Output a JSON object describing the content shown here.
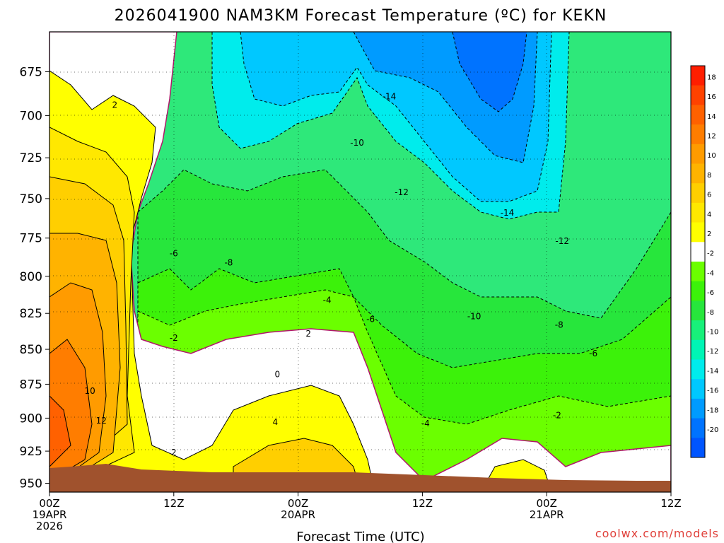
{
  "chart_data": {
    "type": "heatmap",
    "title": "2026041900 NAM3KM Forecast Temperature (ºC) for KEKN",
    "xlabel": "Forecast Time (UTC)",
    "ylabel": "",
    "x_ticks": [
      {
        "hour": 0,
        "line1": "00Z",
        "line2": "19APR",
        "line3": "2026"
      },
      {
        "hour": 12,
        "line1": "12Z",
        "line2": "",
        "line3": ""
      },
      {
        "hour": 24,
        "line1": "00Z",
        "line2": "20APR",
        "line3": ""
      },
      {
        "hour": 36,
        "line1": "12Z",
        "line2": "",
        "line3": ""
      },
      {
        "hour": 48,
        "line1": "00Z",
        "line2": "21APR",
        "line3": ""
      },
      {
        "hour": 60,
        "line1": "12Z",
        "line2": "",
        "line3": ""
      }
    ],
    "xlim_hours": [
      0,
      60
    ],
    "y_ticks": [
      "675",
      "700",
      "725",
      "750",
      "775",
      "800",
      "825",
      "850",
      "875",
      "900",
      "925",
      "950"
    ],
    "ylim_hPa": [
      653,
      957
    ],
    "colorbar": {
      "levels": [
        "18",
        "16",
        "14",
        "12",
        "10",
        "8",
        "6",
        "4",
        "2",
        "-2",
        "-4",
        "-6",
        "-8",
        "-10",
        "-12",
        "-14",
        "-16",
        "-18",
        "-20"
      ],
      "colors": [
        "#ff1e00",
        "#ff4200",
        "#ff6100",
        "#ff7d00",
        "#ff9b00",
        "#ffb300",
        "#ffcf00",
        "#ffe800",
        "#ffff00",
        "#ffffff",
        "#6bff00",
        "#3cf20a",
        "#27e63c",
        "#18f07a",
        "#00f5b5",
        "#00ecec",
        "#00c8ff",
        "#009bff",
        "#0073ff",
        "#0055ff"
      ]
    },
    "contour_labels": [
      {
        "text": "2",
        "hour": 6.3,
        "p": 694
      },
      {
        "text": "10",
        "hour": 3.9,
        "p": 880
      },
      {
        "text": "12",
        "hour": 5.0,
        "p": 902
      },
      {
        "text": "2",
        "hour": 12.0,
        "p": 926
      },
      {
        "text": "-2",
        "hour": 12.0,
        "p": 842
      },
      {
        "text": "-6",
        "hour": 12.0,
        "p": 785
      },
      {
        "text": "-8",
        "hour": 17.3,
        "p": 791
      },
      {
        "text": "0",
        "hour": 22.0,
        "p": 868
      },
      {
        "text": "2",
        "hour": 25.0,
        "p": 839
      },
      {
        "text": "4",
        "hour": 21.8,
        "p": 903
      },
      {
        "text": "-4",
        "hour": 26.8,
        "p": 816
      },
      {
        "text": "-6",
        "hour": 31.0,
        "p": 829
      },
      {
        "text": "-10",
        "hour": 29.7,
        "p": 716
      },
      {
        "text": "-12",
        "hour": 34.0,
        "p": 746
      },
      {
        "text": "-14",
        "hour": 32.8,
        "p": 689
      },
      {
        "text": "-4",
        "hour": 36.3,
        "p": 904
      },
      {
        "text": "-10",
        "hour": 41.0,
        "p": 827
      },
      {
        "text": "-14",
        "hour": 44.2,
        "p": 759
      },
      {
        "text": "-12",
        "hour": 49.5,
        "p": 777
      },
      {
        "text": "-8",
        "hour": 49.2,
        "p": 833
      },
      {
        "text": "-6",
        "hour": 52.5,
        "p": 853
      },
      {
        "text": "-2",
        "hour": 49.0,
        "p": 898
      }
    ]
  },
  "credit": "coolwx.com/models"
}
